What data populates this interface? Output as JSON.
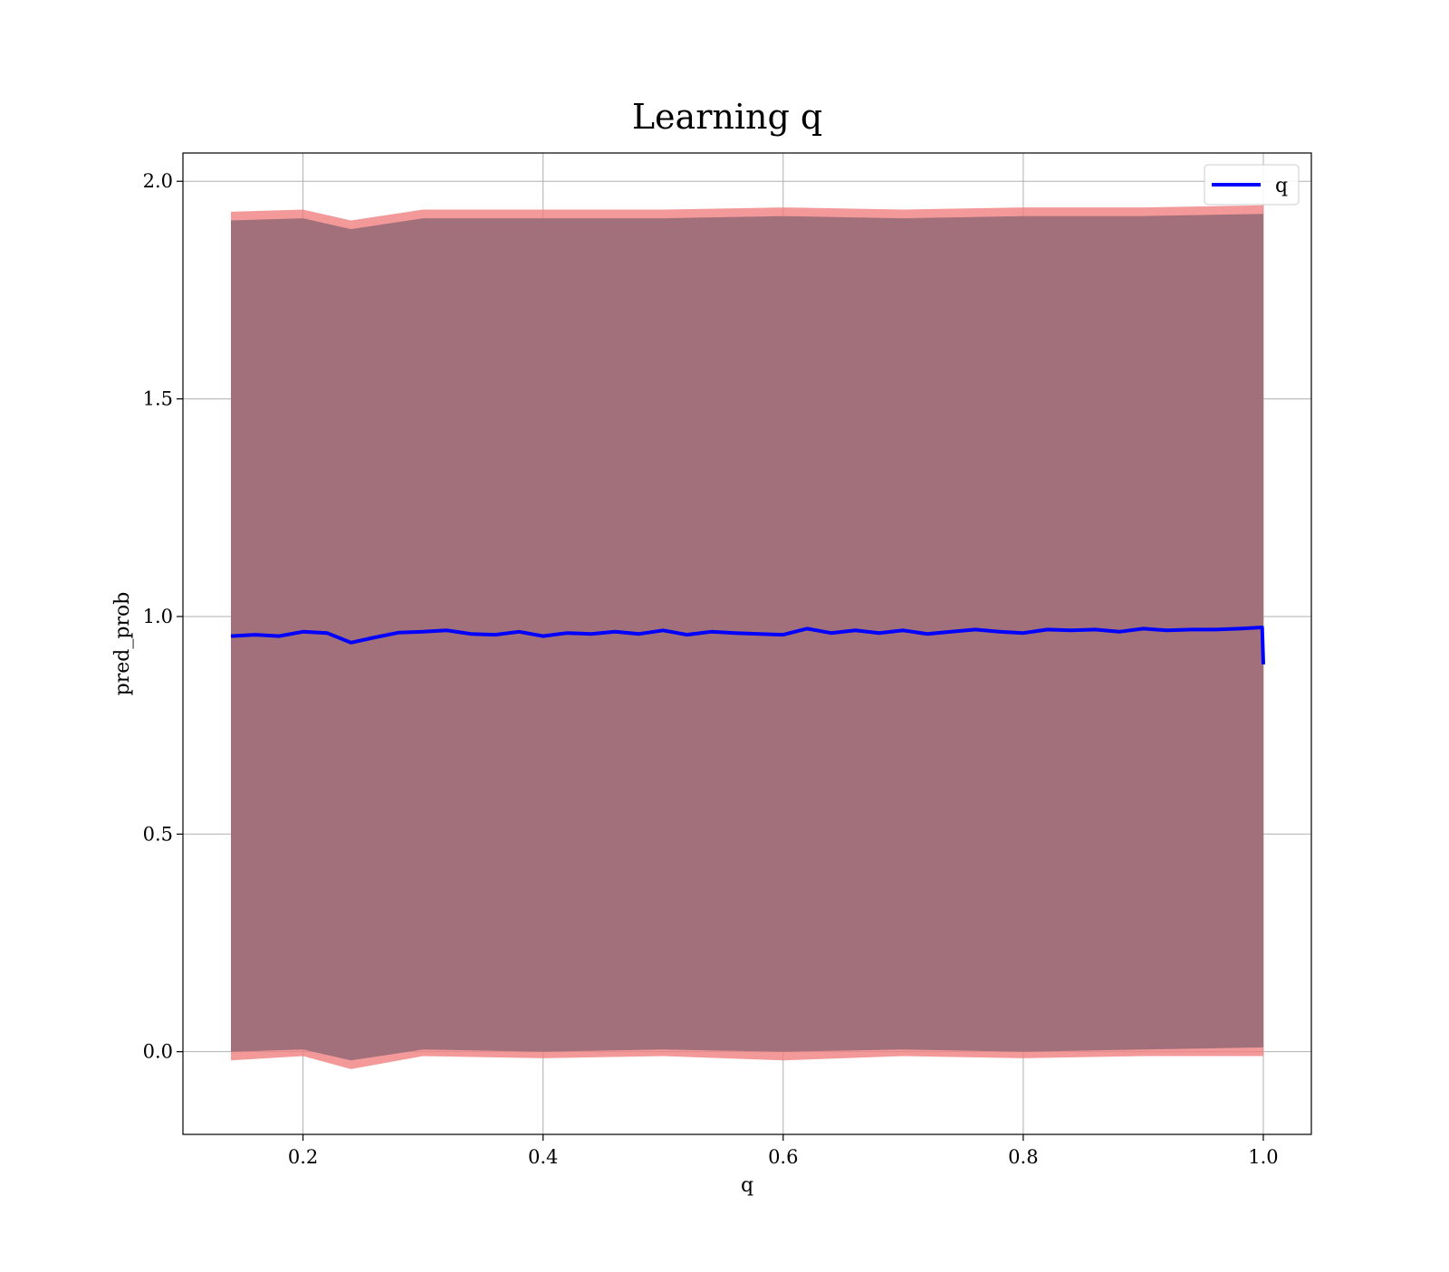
{
  "chart_data": {
    "type": "line",
    "title": "Learning q",
    "xlabel": "q",
    "ylabel": "pred_prob",
    "xlim": [
      0.1,
      1.04
    ],
    "ylim": [
      -0.19,
      2.065
    ],
    "grid": true,
    "legend_position": "top-right",
    "x_ticks": [
      {
        "value": 0.2,
        "label": "0.2"
      },
      {
        "value": 0.4,
        "label": "0.4"
      },
      {
        "value": 0.6,
        "label": "0.6"
      },
      {
        "value": 0.8,
        "label": "0.8"
      },
      {
        "value": 1.0,
        "label": "1.0"
      }
    ],
    "y_ticks": [
      {
        "value": 0.0,
        "label": "0.0"
      },
      {
        "value": 0.5,
        "label": "0.5"
      },
      {
        "value": 1.0,
        "label": "1.0"
      },
      {
        "value": 1.5,
        "label": "1.5"
      },
      {
        "value": 2.0,
        "label": "2.0"
      }
    ],
    "series": [
      {
        "name": "q",
        "color": "#0000ff",
        "x": [
          0.14,
          0.16,
          0.18,
          0.2,
          0.22,
          0.24,
          0.26,
          0.28,
          0.3,
          0.32,
          0.34,
          0.36,
          0.38,
          0.4,
          0.42,
          0.44,
          0.46,
          0.48,
          0.5,
          0.52,
          0.54,
          0.56,
          0.58,
          0.6,
          0.62,
          0.64,
          0.66,
          0.68,
          0.7,
          0.72,
          0.74,
          0.76,
          0.78,
          0.8,
          0.82,
          0.84,
          0.86,
          0.88,
          0.9,
          0.92,
          0.94,
          0.96,
          0.98,
          0.999,
          1.0
        ],
        "y": [
          0.955,
          0.958,
          0.955,
          0.965,
          0.962,
          0.94,
          0.952,
          0.963,
          0.965,
          0.968,
          0.96,
          0.958,
          0.965,
          0.955,
          0.962,
          0.96,
          0.965,
          0.96,
          0.968,
          0.958,
          0.965,
          0.962,
          0.96,
          0.958,
          0.972,
          0.962,
          0.968,
          0.962,
          0.968,
          0.96,
          0.965,
          0.97,
          0.965,
          0.962,
          0.97,
          0.968,
          0.97,
          0.965,
          0.972,
          0.968,
          0.97,
          0.97,
          0.972,
          0.975,
          0.89
        ]
      }
    ],
    "band_outer": {
      "color": "#f08080",
      "x": [
        0.14,
        0.2,
        0.24,
        0.3,
        0.4,
        0.5,
        0.6,
        0.7,
        0.8,
        0.9,
        1.0
      ],
      "lower": [
        -0.02,
        -0.01,
        -0.04,
        -0.01,
        -0.015,
        -0.01,
        -0.02,
        -0.01,
        -0.015,
        -0.01,
        -0.01
      ],
      "upper": [
        1.93,
        1.935,
        1.91,
        1.935,
        1.935,
        1.935,
        1.94,
        1.935,
        1.94,
        1.94,
        1.945
      ]
    },
    "band_main": {
      "color": "#a1707a",
      "x": [
        0.14,
        0.2,
        0.24,
        0.3,
        0.4,
        0.5,
        0.6,
        0.7,
        0.8,
        0.9,
        1.0
      ],
      "lower": [
        0.0,
        0.005,
        -0.02,
        0.005,
        0.0,
        0.005,
        0.0,
        0.005,
        0.0,
        0.005,
        0.01
      ],
      "upper": [
        1.91,
        1.915,
        1.89,
        1.915,
        1.915,
        1.915,
        1.92,
        1.915,
        1.92,
        1.92,
        1.925
      ]
    }
  }
}
